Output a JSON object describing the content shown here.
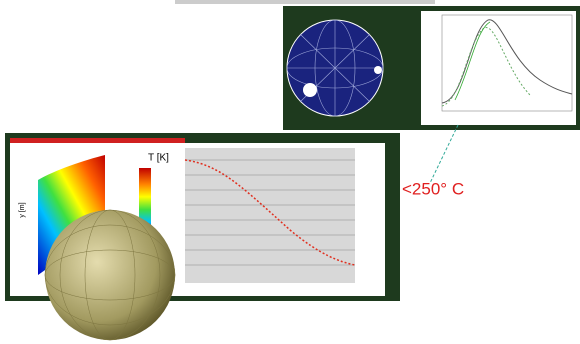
{
  "callout": {
    "text": "<250° C"
  },
  "contour_panel": {
    "colorbar_title": "T [K]",
    "y_axis_label": "y [m]"
  }
}
